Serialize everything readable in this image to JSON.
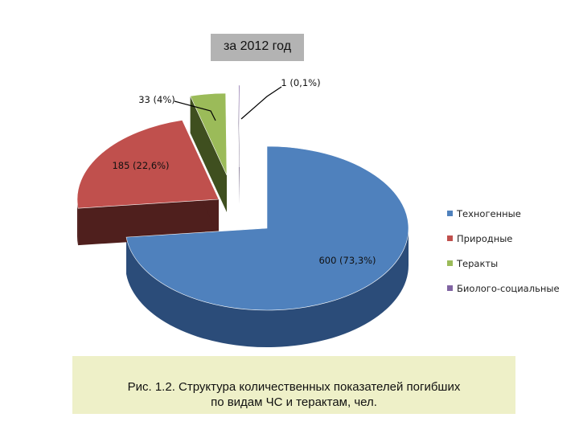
{
  "chart_data": {
    "type": "pie",
    "title": "за 2012 год",
    "exploded": true,
    "three_d": true,
    "legend_position": "right",
    "slices": [
      {
        "name": "Техногенные",
        "value": 600,
        "percent": 73.3,
        "label": "600 (73,3%)",
        "color": "#4f81bd",
        "side_color": "#2b4c79"
      },
      {
        "name": "Природные",
        "value": 185,
        "percent": 22.6,
        "label": "185 (22,6%)",
        "color": "#c0504d",
        "side_color": "#4f1f1d"
      },
      {
        "name": "Теракты",
        "value": 33,
        "percent": 4,
        "label": "33 (4%)",
        "color": "#9bbb59",
        "side_color": "#3f4f1f"
      },
      {
        "name": "Биолого-социальные",
        "value": 1,
        "percent": 0.1,
        "label": "1 (0,1%)",
        "color": "#8064a2",
        "side_color": "#40305a"
      }
    ]
  },
  "caption": {
    "line1": "Рис. 1.2. Структура количественных показателей погибших",
    "line2": "по видам ЧС и терактам, чел."
  }
}
